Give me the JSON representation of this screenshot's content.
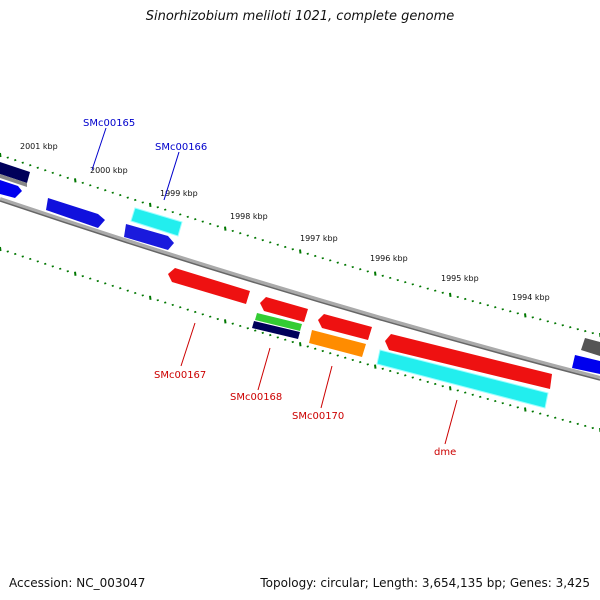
{
  "title": "Sinorhizobium meliloti 1021, complete genome",
  "footer": {
    "accession": "Accession: NC_003047",
    "summary": "Topology: circular; Length: 3,654,135 bp; Genes: 3,425"
  },
  "scale_labels": [
    "2001 kbp",
    "2000 kbp",
    "1999 kbp",
    "1998 kbp",
    "1997 kbp",
    "1996 kbp",
    "1995 kbp",
    "1994 kbp"
  ],
  "gene_labels": {
    "smc00165": "SMc00165",
    "smc00166": "SMc00166",
    "smc00167": "SMc00167",
    "smc00168": "SMc00168",
    "smc00170": "SMc00170",
    "dme": "dme"
  },
  "colors": {
    "forward_label": "#0000cc",
    "reverse_label": "#cc0000",
    "backbone": "#888888",
    "tick": "#007700",
    "red": "#ee0000",
    "blue": "#0000ee",
    "navy": "#00005a",
    "cyan": "#00eeee",
    "green": "#22bb22",
    "orange": "#ff8c00",
    "gray": "#555555"
  }
}
